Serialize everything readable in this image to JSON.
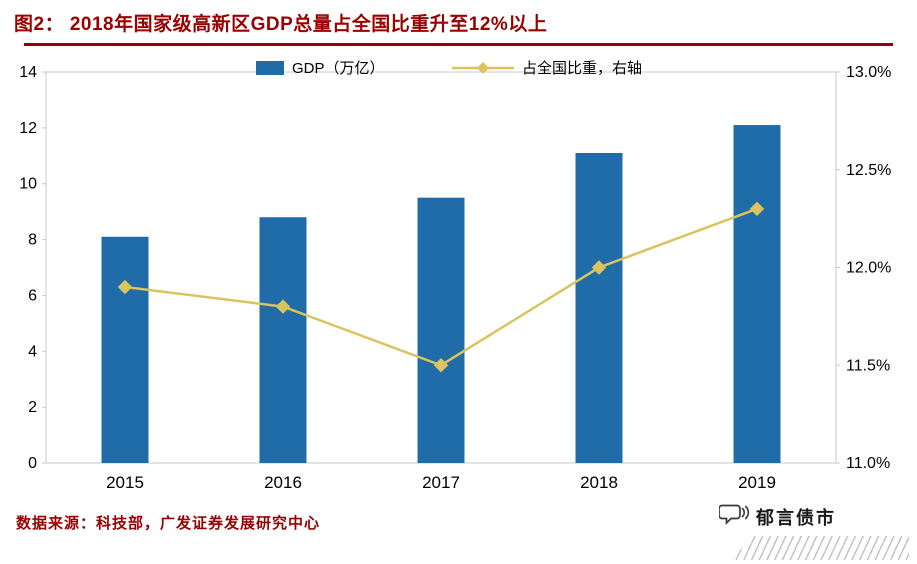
{
  "header": {
    "title": "图2：  2018年国家级高新区GDP总量占全国比重升至12%以上"
  },
  "footer": {
    "source": "数据来源：科技部，广发证券发展研究中心",
    "brand": "郁言债市"
  },
  "colors": {
    "title": "#990000",
    "rule": "#990000",
    "source_text": "#990000",
    "bar": "#1F6CA8",
    "line": "#D9C45F",
    "axis_border": "#C9C9C9",
    "text": "#000000"
  },
  "chart_data": {
    "type": "bar+line combo",
    "categories": [
      "2015",
      "2016",
      "2017",
      "2018",
      "2019"
    ],
    "series": [
      {
        "name": "GDP（万亿）",
        "type": "bar",
        "axis": "left",
        "color": "#1F6CA8",
        "values": [
          8.1,
          8.8,
          9.5,
          11.1,
          12.1
        ]
      },
      {
        "name": "占全国比重，右轴",
        "type": "line",
        "axis": "right",
        "color": "#D9C45F",
        "values": [
          11.9,
          11.8,
          11.5,
          12.0,
          12.3
        ]
      }
    ],
    "left_axis": {
      "min": 0,
      "max": 14,
      "step": 2,
      "format": "integer"
    },
    "right_axis": {
      "min": 11.0,
      "max": 13.0,
      "step": 0.5,
      "format": "percent_1dp"
    },
    "legend_position": "top",
    "grid": false,
    "title": "2018年国家级高新区GDP总量占全国比重升至12%以上"
  }
}
